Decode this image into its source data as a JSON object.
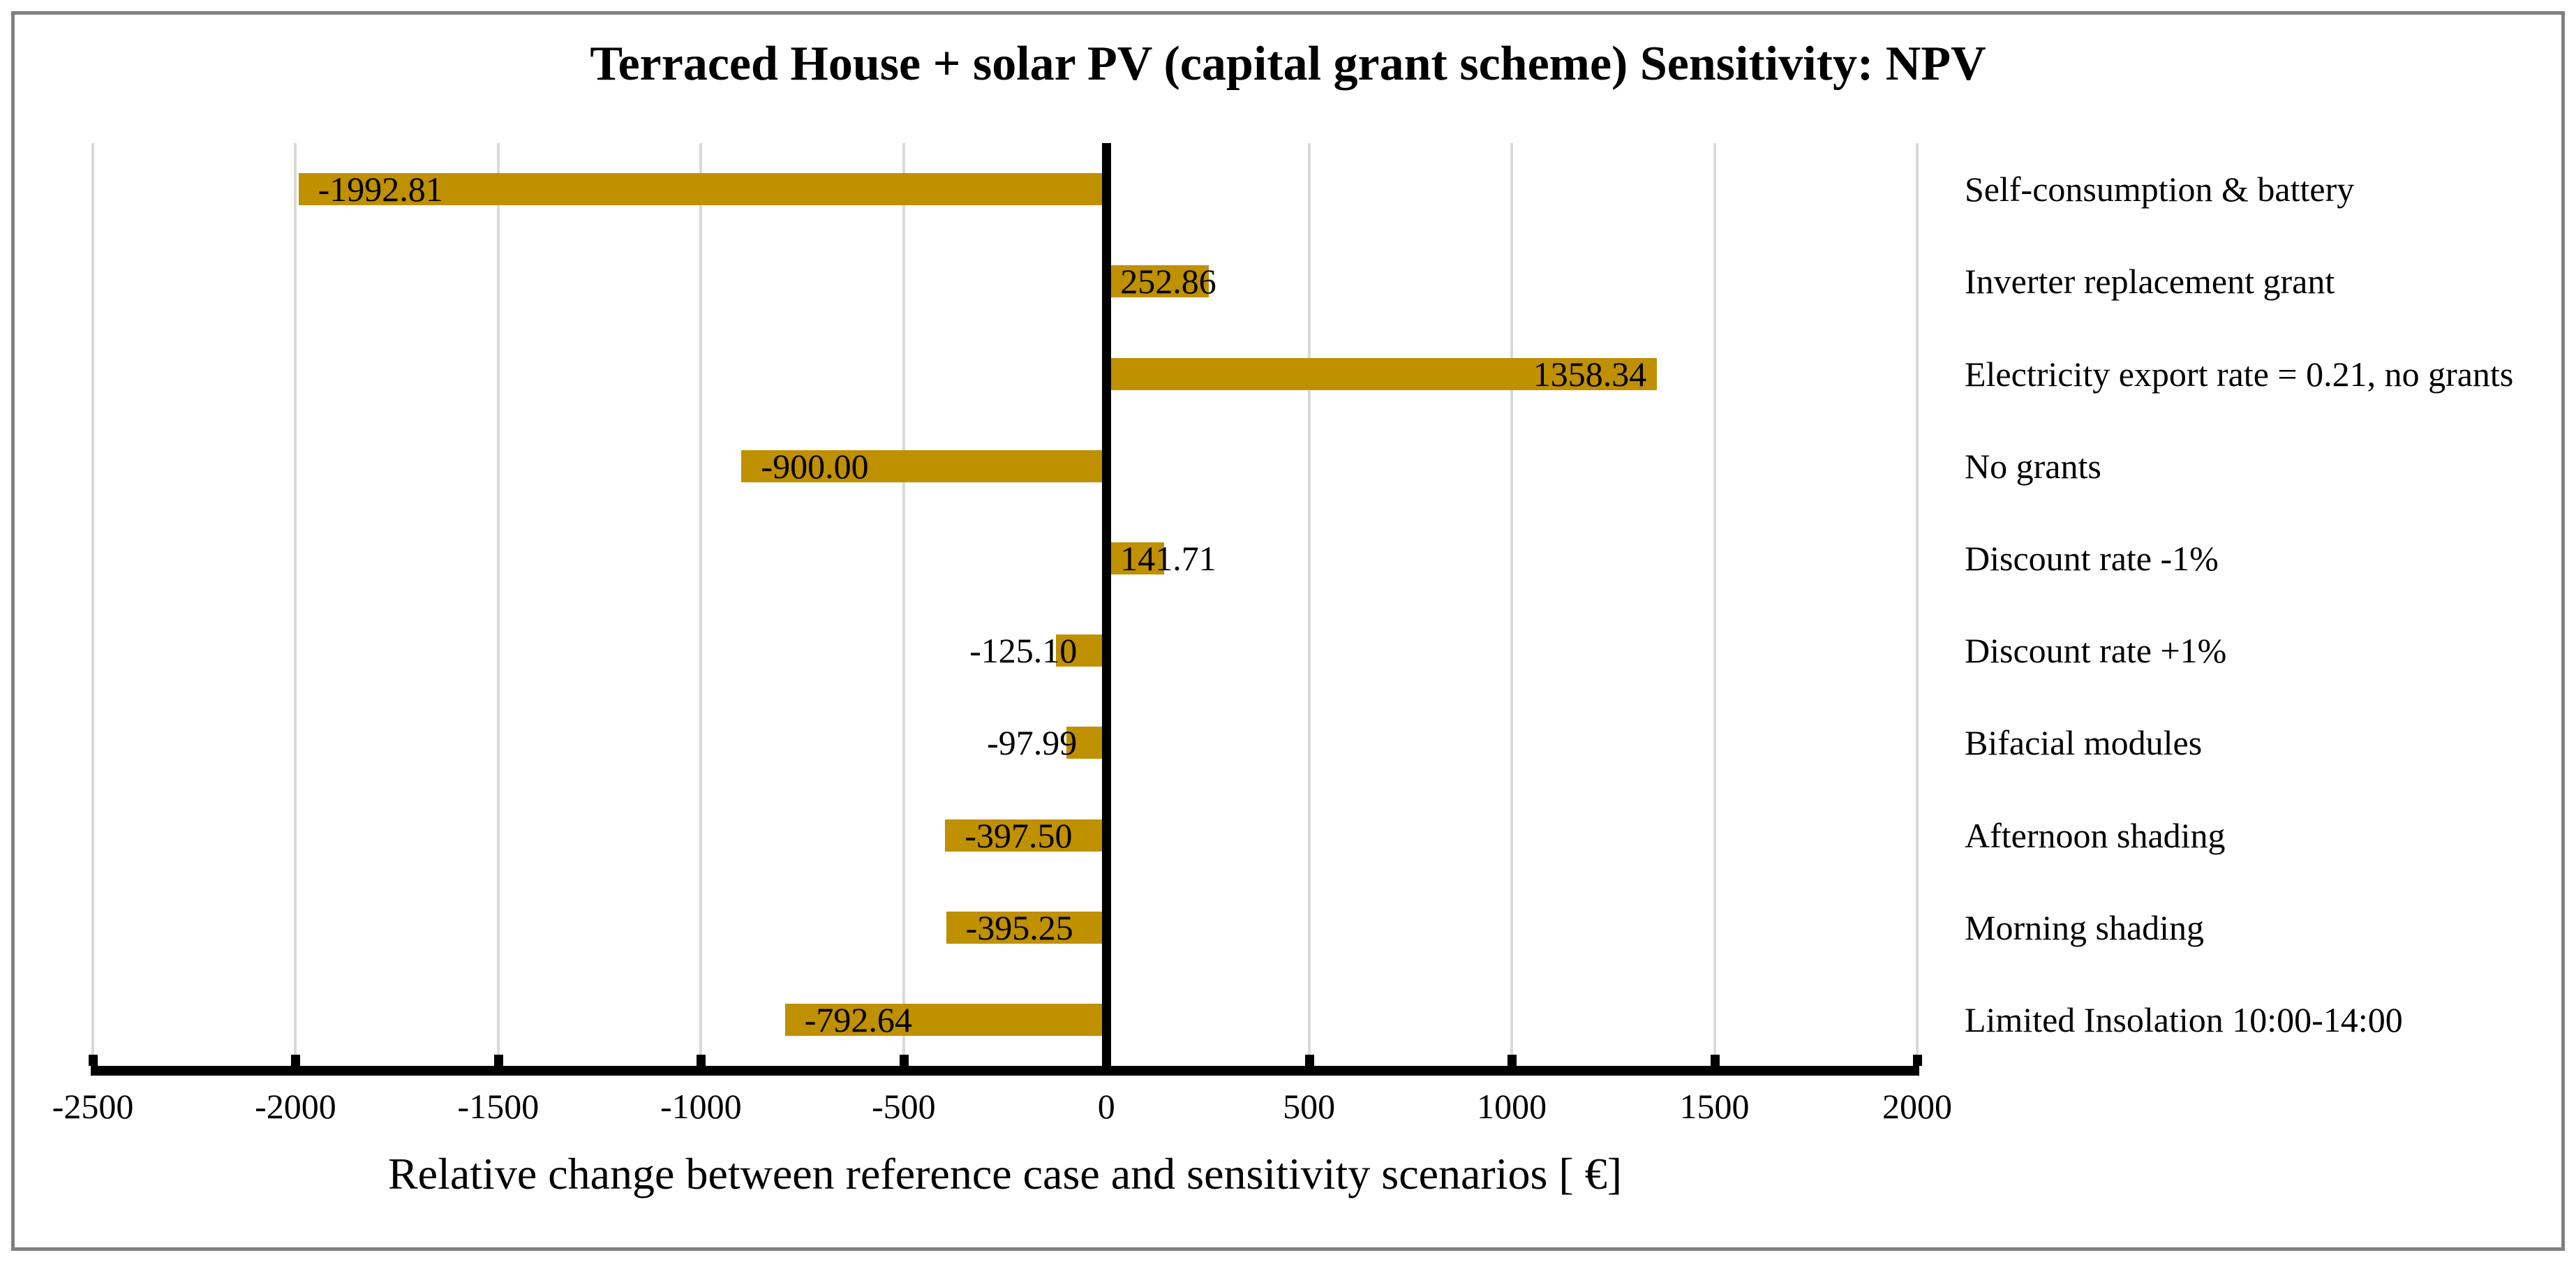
{
  "title": "Terraced House + solar PV (capital grant scheme) Sensitivity: NPV",
  "chart_data": {
    "type": "bar",
    "orientation": "horizontal",
    "title": "Terraced House + solar PV (capital grant scheme) Sensitivity: NPV",
    "xlabel": "Relative change between reference case and sensitivity scenarios [ €]",
    "ylabel": "",
    "xlim": [
      -2500,
      2000
    ],
    "xticks": [
      -2500,
      -2000,
      -1500,
      -1000,
      -500,
      0,
      500,
      1000,
      1500,
      2000
    ],
    "xtick_labels": [
      "-2500",
      "-2000",
      "-1500",
      "-1000",
      "-500",
      "0",
      "500",
      "1000",
      "1500",
      "2000"
    ],
    "grid": true,
    "legend": false,
    "categories": [
      "Self-consumption & battery",
      "Inverter replacement grant",
      "Electricity export rate = 0.21, no grants",
      "No grants",
      "Discount rate -1%",
      "Discount rate +1%",
      "Bifacial modules",
      "Afternoon shading",
      "Morning shading",
      "Limited Insolation 10:00-14:00"
    ],
    "values": [
      -1992.81,
      252.86,
      1358.34,
      -900.0,
      141.71,
      -125.1,
      -97.99,
      -397.5,
      -395.25,
      -792.64
    ],
    "value_labels": [
      "-1992.81",
      "252.86",
      "1358.34",
      "-900.00",
      "141.71",
      "-125.10",
      "-97.99",
      "-397.50",
      "-395.25",
      "-792.64"
    ],
    "colors": {
      "bar": "#BF9000",
      "gridline": "#D9D9D9",
      "axis": "#000000",
      "zero_line": "#000000",
      "text": "#000000",
      "outer_border": "#808080",
      "background": "#FFFFFF"
    }
  }
}
